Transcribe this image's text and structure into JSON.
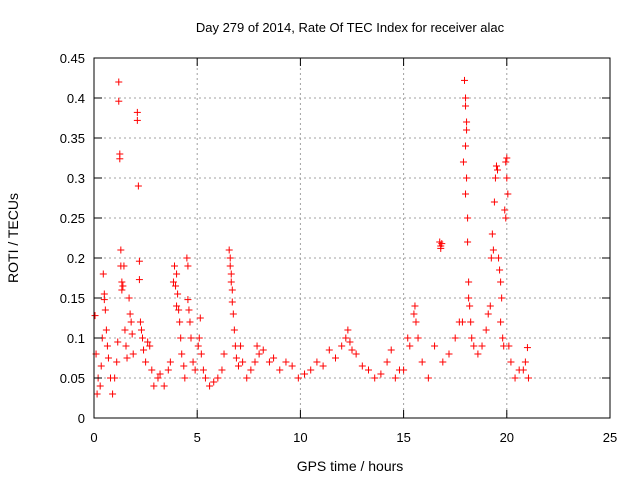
{
  "chart_data": {
    "type": "scatter",
    "title": "Day 279 of 2014, Rate Of TEC Index for receiver alac",
    "xlabel": "GPS time / hours",
    "ylabel": "ROTI / TECUs",
    "xlim": [
      0,
      25
    ],
    "ylim": [
      0,
      0.45
    ],
    "x_ticks": [
      0,
      5,
      10,
      15,
      20,
      25
    ],
    "y_ticks": [
      0,
      0.05,
      0.1,
      0.15,
      0.2,
      0.25,
      0.3,
      0.35,
      0.4,
      0.45
    ],
    "x_tick_labels": [
      "0",
      "5",
      "10",
      "15",
      "20",
      "25"
    ],
    "y_tick_labels": [
      "0",
      "0.05",
      "0.1",
      "0.15",
      "0.2",
      "0.25",
      "0.3",
      "0.35",
      "0.4",
      "0.45"
    ],
    "grid": true,
    "marker": "+",
    "marker_color": "#ff0000",
    "series": [
      {
        "points": [
          [
            0.05,
            0.128
          ],
          [
            0.1,
            0.08
          ],
          [
            0.15,
            0.03
          ],
          [
            0.2,
            0.05
          ],
          [
            0.3,
            0.04
          ],
          [
            0.35,
            0.065
          ],
          [
            0.4,
            0.1
          ],
          [
            0.45,
            0.18
          ],
          [
            0.5,
            0.155
          ],
          [
            0.5,
            0.148
          ],
          [
            0.55,
            0.135
          ],
          [
            0.6,
            0.11
          ],
          [
            0.65,
            0.09
          ],
          [
            0.7,
            0.075
          ],
          [
            0.8,
            0.05
          ],
          [
            0.9,
            0.03
          ],
          [
            1.0,
            0.05
          ],
          [
            1.1,
            0.07
          ],
          [
            1.15,
            0.095
          ],
          [
            1.2,
            0.42
          ],
          [
            1.2,
            0.396
          ],
          [
            1.25,
            0.33
          ],
          [
            1.25,
            0.324
          ],
          [
            1.3,
            0.21
          ],
          [
            1.3,
            0.19
          ],
          [
            1.35,
            0.17
          ],
          [
            1.35,
            0.16
          ],
          [
            1.4,
            0.165
          ],
          [
            1.45,
            0.19
          ],
          [
            1.5,
            0.11
          ],
          [
            1.55,
            0.09
          ],
          [
            1.6,
            0.075
          ],
          [
            1.7,
            0.15
          ],
          [
            1.75,
            0.13
          ],
          [
            1.8,
            0.12
          ],
          [
            1.85,
            0.105
          ],
          [
            1.9,
            0.08
          ],
          [
            2.1,
            0.382
          ],
          [
            2.1,
            0.372
          ],
          [
            2.15,
            0.29
          ],
          [
            2.2,
            0.196
          ],
          [
            2.2,
            0.173
          ],
          [
            2.25,
            0.12
          ],
          [
            2.3,
            0.11
          ],
          [
            2.35,
            0.1
          ],
          [
            2.4,
            0.085
          ],
          [
            2.5,
            0.07
          ],
          [
            2.6,
            0.095
          ],
          [
            2.7,
            0.09
          ],
          [
            2.8,
            0.06
          ],
          [
            2.9,
            0.04
          ],
          [
            3.1,
            0.05
          ],
          [
            3.2,
            0.055
          ],
          [
            3.4,
            0.04
          ],
          [
            3.6,
            0.06
          ],
          [
            3.7,
            0.07
          ],
          [
            3.85,
            0.17
          ],
          [
            3.9,
            0.19
          ],
          [
            3.95,
            0.165
          ],
          [
            4.0,
            0.18
          ],
          [
            4.0,
            0.14
          ],
          [
            4.05,
            0.155
          ],
          [
            4.1,
            0.135
          ],
          [
            4.15,
            0.12
          ],
          [
            4.2,
            0.1
          ],
          [
            4.25,
            0.08
          ],
          [
            4.35,
            0.065
          ],
          [
            4.4,
            0.05
          ],
          [
            4.5,
            0.2
          ],
          [
            4.55,
            0.19
          ],
          [
            4.55,
            0.148
          ],
          [
            4.6,
            0.135
          ],
          [
            4.65,
            0.12
          ],
          [
            4.7,
            0.1
          ],
          [
            4.8,
            0.07
          ],
          [
            4.9,
            0.06
          ],
          [
            5.05,
            0.09
          ],
          [
            5.1,
            0.1
          ],
          [
            5.15,
            0.125
          ],
          [
            5.2,
            0.08
          ],
          [
            5.3,
            0.06
          ],
          [
            5.4,
            0.05
          ],
          [
            5.6,
            0.04
          ],
          [
            5.8,
            0.045
          ],
          [
            6.0,
            0.05
          ],
          [
            6.2,
            0.06
          ],
          [
            6.3,
            0.08
          ],
          [
            6.55,
            0.21
          ],
          [
            6.6,
            0.2
          ],
          [
            6.6,
            0.19
          ],
          [
            6.65,
            0.18
          ],
          [
            6.65,
            0.17
          ],
          [
            6.7,
            0.16
          ],
          [
            6.7,
            0.145
          ],
          [
            6.75,
            0.13
          ],
          [
            6.8,
            0.11
          ],
          [
            6.85,
            0.09
          ],
          [
            6.9,
            0.075
          ],
          [
            7.0,
            0.065
          ],
          [
            7.1,
            0.09
          ],
          [
            7.2,
            0.07
          ],
          [
            7.4,
            0.05
          ],
          [
            7.6,
            0.06
          ],
          [
            7.8,
            0.07
          ],
          [
            7.9,
            0.09
          ],
          [
            8.0,
            0.08
          ],
          [
            8.2,
            0.085
          ],
          [
            8.5,
            0.07
          ],
          [
            8.7,
            0.075
          ],
          [
            9.0,
            0.06
          ],
          [
            9.3,
            0.07
          ],
          [
            9.6,
            0.065
          ],
          [
            9.9,
            0.05
          ],
          [
            10.2,
            0.055
          ],
          [
            10.5,
            0.06
          ],
          [
            10.8,
            0.07
          ],
          [
            11.1,
            0.065
          ],
          [
            11.4,
            0.085
          ],
          [
            11.7,
            0.075
          ],
          [
            12.0,
            0.09
          ],
          [
            12.2,
            0.1
          ],
          [
            12.3,
            0.11
          ],
          [
            12.4,
            0.095
          ],
          [
            12.5,
            0.085
          ],
          [
            12.7,
            0.08
          ],
          [
            13.0,
            0.065
          ],
          [
            13.3,
            0.06
          ],
          [
            13.6,
            0.05
          ],
          [
            13.9,
            0.055
          ],
          [
            14.2,
            0.07
          ],
          [
            14.4,
            0.085
          ],
          [
            14.6,
            0.05
          ],
          [
            14.8,
            0.06
          ],
          [
            15.0,
            0.06
          ],
          [
            15.2,
            0.1
          ],
          [
            15.3,
            0.09
          ],
          [
            15.5,
            0.13
          ],
          [
            15.55,
            0.14
          ],
          [
            15.6,
            0.12
          ],
          [
            15.7,
            0.1
          ],
          [
            15.9,
            0.07
          ],
          [
            16.2,
            0.05
          ],
          [
            16.5,
            0.09
          ],
          [
            16.75,
            0.22
          ],
          [
            16.8,
            0.215
          ],
          [
            16.8,
            0.212
          ],
          [
            16.85,
            0.218
          ],
          [
            16.9,
            0.07
          ],
          [
            17.2,
            0.08
          ],
          [
            17.5,
            0.1
          ],
          [
            17.7,
            0.12
          ],
          [
            17.85,
            0.12
          ],
          [
            17.9,
            0.32
          ],
          [
            17.95,
            0.422
          ],
          [
            18.0,
            0.4
          ],
          [
            18.0,
            0.39
          ],
          [
            18.05,
            0.37
          ],
          [
            18.05,
            0.36
          ],
          [
            18.0,
            0.34
          ],
          [
            18.05,
            0.3
          ],
          [
            18.0,
            0.28
          ],
          [
            18.1,
            0.25
          ],
          [
            18.1,
            0.22
          ],
          [
            18.15,
            0.17
          ],
          [
            18.15,
            0.15
          ],
          [
            18.2,
            0.14
          ],
          [
            18.25,
            0.12
          ],
          [
            18.3,
            0.1
          ],
          [
            18.4,
            0.09
          ],
          [
            18.6,
            0.08
          ],
          [
            18.8,
            0.09
          ],
          [
            19.0,
            0.11
          ],
          [
            19.1,
            0.13
          ],
          [
            19.2,
            0.14
          ],
          [
            19.25,
            0.2
          ],
          [
            19.3,
            0.23
          ],
          [
            19.35,
            0.21
          ],
          [
            19.4,
            0.27
          ],
          [
            19.45,
            0.3
          ],
          [
            19.5,
            0.315
          ],
          [
            19.55,
            0.31
          ],
          [
            19.6,
            0.2
          ],
          [
            19.65,
            0.185
          ],
          [
            19.7,
            0.17
          ],
          [
            19.75,
            0.15
          ],
          [
            19.7,
            0.12
          ],
          [
            19.8,
            0.1
          ],
          [
            19.85,
            0.09
          ],
          [
            19.9,
            0.26
          ],
          [
            19.95,
            0.25
          ],
          [
            20.0,
            0.325
          ],
          [
            20.0,
            0.3
          ],
          [
            20.05,
            0.28
          ],
          [
            19.95,
            0.32
          ],
          [
            20.1,
            0.09
          ],
          [
            20.2,
            0.07
          ],
          [
            20.4,
            0.05
          ],
          [
            20.6,
            0.06
          ],
          [
            20.8,
            0.06
          ],
          [
            20.9,
            0.07
          ],
          [
            21.0,
            0.088
          ],
          [
            21.05,
            0.05
          ]
        ]
      }
    ]
  }
}
